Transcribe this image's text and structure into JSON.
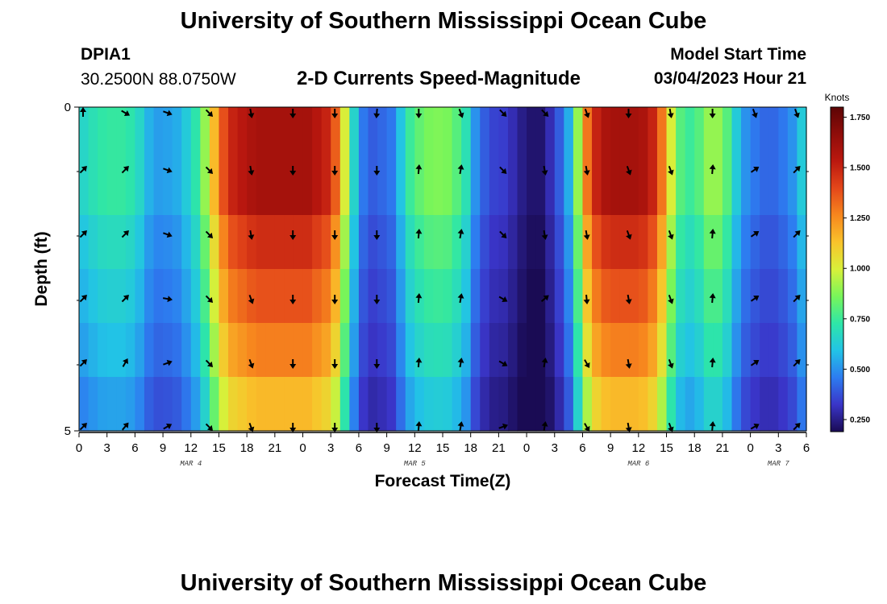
{
  "header": {
    "title": "University of Southern Mississippi Ocean Cube",
    "station_id": "DPIA1",
    "coords": "30.2500N  88.0750W",
    "subtitle": "2-D Currents Speed-Magnitude",
    "model_start_label": "Model Start Time",
    "model_start_value": "03/04/2023 Hour 21"
  },
  "footer": {
    "title": "University of Southern Mississippi Ocean Cube"
  },
  "chart_data": {
    "type": "heatmap",
    "title": "2-D Currents Speed-Magnitude",
    "xlabel": "Forecast Time(Z)",
    "ylabel": "Depth (ft)",
    "x_hours": [
      0,
      78
    ],
    "y_range": [
      0,
      5
    ],
    "x_tick_labels": [
      "0",
      "3",
      "6",
      "9",
      "12",
      "15",
      "18",
      "21",
      "0",
      "3",
      "6",
      "9",
      "12",
      "15",
      "18",
      "21",
      "0",
      "3",
      "6",
      "9",
      "12",
      "15",
      "18",
      "21",
      "0",
      "3",
      "6"
    ],
    "y_tick_labels": [
      "0",
      "5"
    ],
    "month_labels": [
      {
        "label": "MAR 4",
        "hour": 12
      },
      {
        "label": "MAR 5",
        "hour": 36
      },
      {
        "label": "MAR 6",
        "hour": 60
      },
      {
        "label": "MAR 7",
        "hour": 75
      }
    ],
    "colorbar": {
      "units": "Knots",
      "min": 0.19,
      "max": 1.8,
      "ticks": [
        "0.250",
        "0.500",
        "0.750",
        "1.000",
        "1.250",
        "1.500",
        "1.750"
      ],
      "tick_values": [
        0.25,
        0.5,
        0.75,
        1.0,
        1.25,
        1.5,
        1.75
      ],
      "colors": [
        "#1a0b54",
        "#3a35c8",
        "#2d7cf0",
        "#22c3e6",
        "#2ee6a8",
        "#78f55a",
        "#d8f03a",
        "#f9c32b",
        "#f7871e",
        "#e4471a",
        "#bb180f",
        "#8f0d0a",
        "#5d0505"
      ]
    },
    "speed_profile": {
      "hours": [
        0,
        1,
        2,
        3,
        4,
        5,
        6,
        7,
        8,
        9,
        10,
        11,
        12,
        13,
        14,
        15,
        16,
        17,
        18,
        19,
        20,
        21,
        22,
        23,
        24,
        25,
        26,
        27,
        28,
        29,
        30,
        31,
        32,
        33,
        34,
        35,
        36,
        37,
        38,
        39,
        40,
        41,
        42,
        43,
        44,
        45,
        46,
        47,
        48,
        49,
        50,
        51,
        52,
        53,
        54,
        55,
        56,
        57,
        58,
        59,
        60,
        61,
        62,
        63,
        64,
        65,
        66,
        67,
        68,
        69,
        70,
        71,
        72,
        73,
        74,
        75,
        76,
        77,
        78
      ],
      "values": [
        0.66,
        0.7,
        0.73,
        0.74,
        0.74,
        0.72,
        0.66,
        0.56,
        0.52,
        0.53,
        0.55,
        0.62,
        0.72,
        0.9,
        1.15,
        1.38,
        1.5,
        1.54,
        1.58,
        1.6,
        1.6,
        1.6,
        1.6,
        1.6,
        1.6,
        1.55,
        1.5,
        1.35,
        1.0,
        0.65,
        0.45,
        0.4,
        0.42,
        0.45,
        0.6,
        0.75,
        0.82,
        0.86,
        0.87,
        0.86,
        0.8,
        0.7,
        0.5,
        0.4,
        0.35,
        0.34,
        0.3,
        0.25,
        0.22,
        0.22,
        0.3,
        0.4,
        0.55,
        0.9,
        1.3,
        1.5,
        1.58,
        1.6,
        1.6,
        1.6,
        1.58,
        1.5,
        1.3,
        1.0,
        0.8,
        0.75,
        0.8,
        0.9,
        0.9,
        0.8,
        0.62,
        0.5,
        0.45,
        0.42,
        0.42,
        0.45,
        0.5,
        0.62,
        0.7
      ],
      "depth_factors": [
        1.0,
        1.0,
        0.92,
        0.86,
        0.8,
        0.72
      ]
    },
    "vectors": {
      "hours": [
        0,
        4.5,
        9,
        13.5,
        18,
        22.5,
        27,
        31.5,
        36,
        40.5,
        45,
        49.5,
        54,
        58.5,
        63,
        67.5,
        72,
        76.5
      ],
      "rows": [
        [
          0,
          120,
          110,
          135,
          170,
          180,
          180,
          185,
          180,
          160,
          135,
          135,
          160,
          180,
          170,
          180,
          160,
          160
        ],
        [
          45,
          45,
          110,
          135,
          170,
          180,
          180,
          180,
          5,
          10,
          135,
          170,
          170,
          160,
          160,
          5,
          55,
          45
        ],
        [
          45,
          45,
          110,
          135,
          170,
          180,
          180,
          180,
          5,
          10,
          135,
          170,
          170,
          160,
          160,
          5,
          55,
          45
        ],
        [
          45,
          45,
          100,
          135,
          160,
          180,
          180,
          180,
          5,
          10,
          120,
          50,
          175,
          170,
          160,
          5,
          55,
          45
        ],
        [
          45,
          30,
          70,
          135,
          160,
          180,
          180,
          180,
          5,
          10,
          120,
          10,
          150,
          170,
          160,
          5,
          55,
          45
        ],
        [
          45,
          40,
          60,
          135,
          160,
          180,
          180,
          180,
          5,
          10,
          70,
          10,
          150,
          170,
          160,
          5,
          60,
          45
        ]
      ]
    }
  }
}
